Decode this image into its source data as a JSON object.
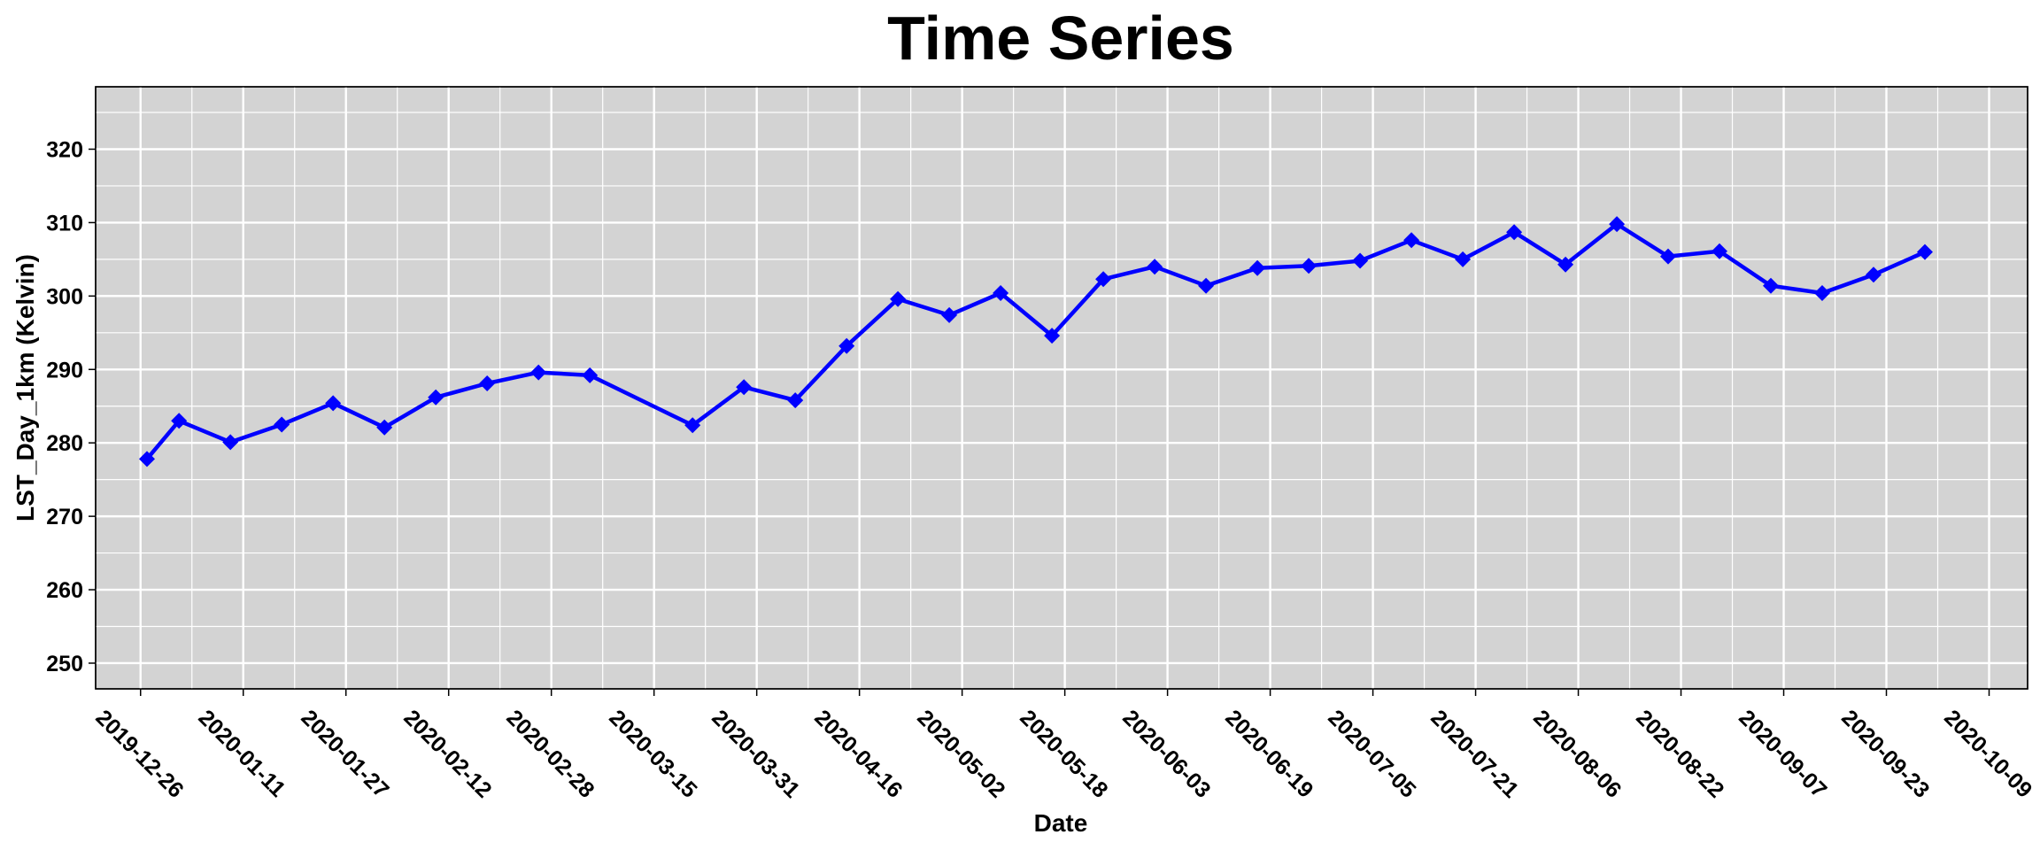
{
  "chart_data": {
    "type": "line",
    "title": "Time Series",
    "xlabel": "Date",
    "ylabel": "LST_Day_1km (Kelvin)",
    "x_ticks": [
      "2019-12-26",
      "2020-01-11",
      "2020-01-27",
      "2020-02-12",
      "2020-02-28",
      "2020-03-15",
      "2020-03-31",
      "2020-04-16",
      "2020-05-02",
      "2020-05-18",
      "2020-06-03",
      "2020-06-19",
      "2020-07-05",
      "2020-07-21",
      "2020-08-06",
      "2020-08-22",
      "2020-09-07",
      "2020-09-23",
      "2020-10-09"
    ],
    "y_ticks": [
      250,
      260,
      270,
      280,
      290,
      300,
      310,
      320
    ],
    "xlim": [
      "2019-12-19",
      "2020-10-15"
    ],
    "ylim": [
      246.5,
      328.5
    ],
    "grid": true,
    "colors": {
      "line": "#0000ff",
      "panel": "#d3d3d3",
      "grid": "#ffffff"
    },
    "marker": "diamond",
    "series": [
      {
        "x": [
          "2019-12-27",
          "2020-01-01",
          "2020-01-09",
          "2020-01-17",
          "2020-01-25",
          "2020-02-02",
          "2020-02-10",
          "2020-02-18",
          "2020-02-26",
          "2020-03-05",
          "2020-03-21",
          "2020-03-29",
          "2020-04-06",
          "2020-04-14",
          "2020-04-22",
          "2020-04-30",
          "2020-05-08",
          "2020-05-16",
          "2020-05-24",
          "2020-06-01",
          "2020-06-09",
          "2020-06-17",
          "2020-06-25",
          "2020-07-03",
          "2020-07-11",
          "2020-07-19",
          "2020-07-27",
          "2020-08-04",
          "2020-08-12",
          "2020-08-20",
          "2020-08-28",
          "2020-09-05",
          "2020-09-13",
          "2020-09-21",
          "2020-09-29"
        ],
        "y": [
          277.8,
          283.0,
          280.1,
          282.5,
          285.4,
          282.1,
          286.2,
          288.1,
          289.6,
          289.2,
          282.4,
          287.6,
          285.8,
          293.2,
          299.6,
          297.4,
          300.4,
          294.6,
          302.3,
          304.0,
          301.4,
          303.8,
          304.1,
          304.8,
          307.6,
          305.0,
          308.7,
          304.3,
          309.8,
          305.4,
          306.1,
          301.4,
          300.4,
          302.9,
          306.0
        ]
      }
    ]
  }
}
